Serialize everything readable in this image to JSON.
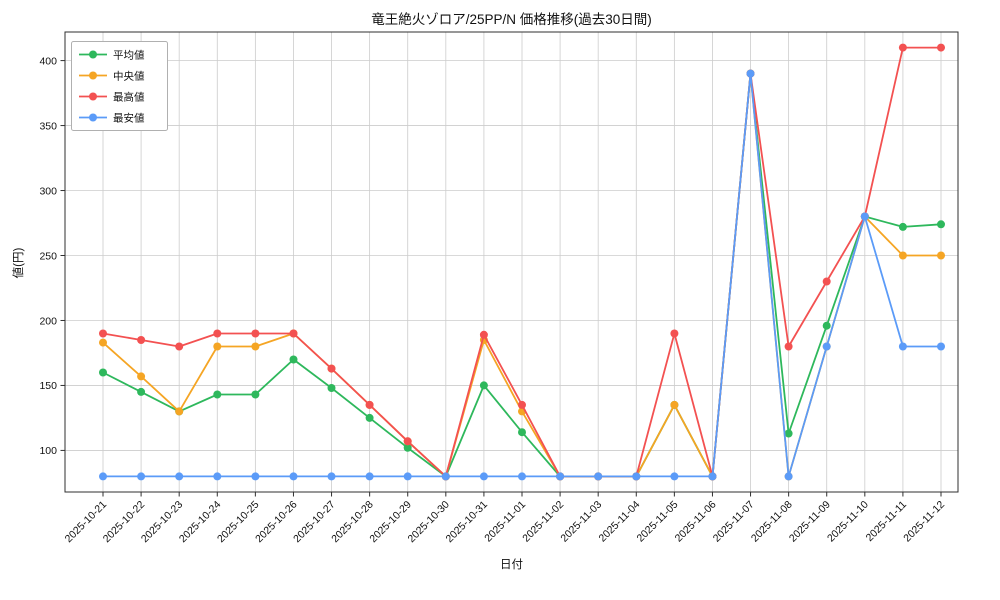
{
  "chart_data": {
    "type": "line",
    "title": "竜王絶火ゾロア/25PP/N 価格推移(過去30日間)",
    "xlabel": "日付",
    "ylabel": "値(円)",
    "grid": true,
    "legend_position": "upper left",
    "marker": "circle",
    "ylim": [
      68,
      422
    ],
    "yticks": [
      100,
      150,
      200,
      250,
      300,
      350,
      400
    ],
    "categories": [
      "2025-10-21",
      "2025-10-22",
      "2025-10-23",
      "2025-10-24",
      "2025-10-25",
      "2025-10-26",
      "2025-10-27",
      "2025-10-28",
      "2025-10-29",
      "2025-10-30",
      "2025-10-31",
      "2025-11-01",
      "2025-11-02",
      "2025-11-03",
      "2025-11-04",
      "2025-11-05",
      "2025-11-06",
      "2025-11-07",
      "2025-11-08",
      "2025-11-09",
      "2025-11-10",
      "2025-11-11",
      "2025-11-12"
    ],
    "series": [
      {
        "key": "average",
        "name": "平均値",
        "color": "#2eb85c",
        "values": [
          160,
          145,
          130,
          143,
          143,
          170,
          148,
          125,
          102,
          80,
          150,
          114,
          80,
          80,
          80,
          135,
          80,
          390,
          113,
          196,
          280,
          272,
          274
        ]
      },
      {
        "key": "median",
        "name": "中央値",
        "color": "#f5a524",
        "values": [
          183,
          157,
          130,
          180,
          180,
          190,
          163,
          135,
          107,
          80,
          185,
          130,
          80,
          80,
          80,
          135,
          80,
          390,
          80,
          180,
          280,
          250,
          250
        ]
      },
      {
        "key": "max",
        "name": "最高値",
        "color": "#f35151",
        "values": [
          190,
          185,
          180,
          190,
          190,
          190,
          163,
          135,
          107,
          80,
          189,
          135,
          80,
          80,
          80,
          190,
          80,
          390,
          180,
          230,
          280,
          410,
          410
        ]
      },
      {
        "key": "min",
        "name": "最安値",
        "color": "#5b9bf8",
        "values": [
          80,
          80,
          80,
          80,
          80,
          80,
          80,
          80,
          80,
          80,
          80,
          80,
          80,
          80,
          80,
          80,
          80,
          390,
          80,
          180,
          280,
          180,
          180
        ]
      }
    ],
    "style_colors": {
      "grid": "#cccccc",
      "spine": "#2f2f2f",
      "tick_text": "#111111",
      "legend_border": "#b0b0b0",
      "background": "#ffffff"
    }
  }
}
